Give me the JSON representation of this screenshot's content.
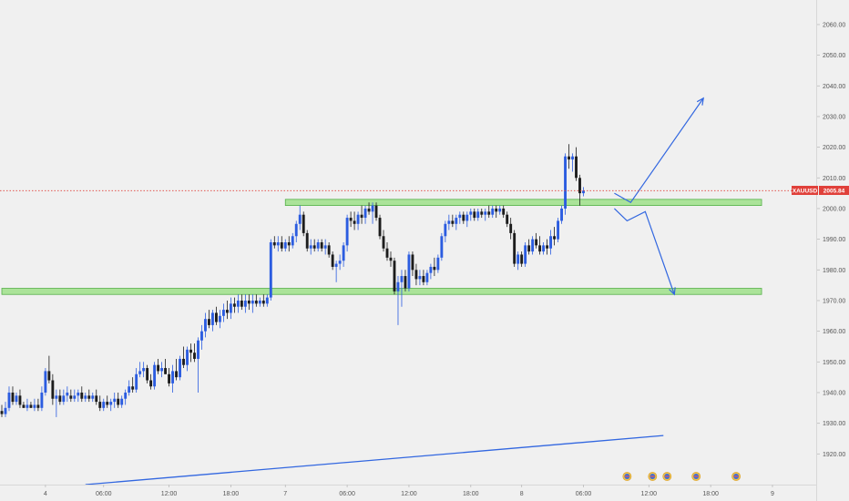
{
  "chart_data": {
    "type": "candlestick",
    "symbol": "XAUUSD",
    "last_price": "2005.84",
    "colors": {
      "background": "#f0f0f0",
      "bull": "#2b5ce0",
      "bear": "#1c1c1c",
      "zone_fill": "#9fe08a",
      "zone_stroke": "#56b04a",
      "drawing": "#3267e0",
      "price_line": "#e0403a",
      "price_tag": "#e0403a"
    },
    "y_axis": {
      "range": [
        1910,
        2068
      ],
      "ticks": [
        "2060.00",
        "2050.00",
        "2040.00",
        "2030.00",
        "2020.00",
        "2010.00",
        "2000.00",
        "1990.00",
        "1980.00",
        "1970.00",
        "1960.00",
        "1950.00",
        "1940.00",
        "1930.00",
        "1920.00"
      ]
    },
    "x_axis": {
      "bar_range": [
        0,
        212
      ],
      "ticks": [
        {
          "label": "4",
          "bar": 12
        },
        {
          "label": "06:00",
          "bar": 28
        },
        {
          "label": "12:00",
          "bar": 46
        },
        {
          "label": "18:00",
          "bar": 63
        },
        {
          "label": "7",
          "bar": 78
        },
        {
          "label": "06:00",
          "bar": 95
        },
        {
          "label": "12:00",
          "bar": 112
        },
        {
          "label": "18:00",
          "bar": 129
        },
        {
          "label": "8",
          "bar": 143
        },
        {
          "label": "06:00",
          "bar": 160
        },
        {
          "label": "12:00",
          "bar": 178
        },
        {
          "label": "18:00",
          "bar": 195
        },
        {
          "label": "9",
          "bar": 212
        }
      ]
    },
    "ohlc": [
      [
        1934,
        1936,
        1932,
        1933
      ],
      [
        1933,
        1937,
        1932,
        1935
      ],
      [
        1935,
        1942,
        1934,
        1940
      ],
      [
        1940,
        1942,
        1936,
        1937
      ],
      [
        1937,
        1940,
        1936,
        1939
      ],
      [
        1939,
        1941,
        1935,
        1936
      ],
      [
        1936,
        1937,
        1935,
        1935
      ],
      [
        1935,
        1938,
        1934,
        1936
      ],
      [
        1936,
        1937,
        1935,
        1935
      ],
      [
        1935,
        1938,
        1934,
        1936
      ],
      [
        1936,
        1938,
        1934,
        1935
      ],
      [
        1935,
        1942,
        1934,
        1940
      ],
      [
        1940,
        1948,
        1939,
        1947
      ],
      [
        1947,
        1952,
        1943,
        1944
      ],
      [
        1944,
        1946,
        1936,
        1938
      ],
      [
        1938,
        1941,
        1932,
        1939
      ],
      [
        1939,
        1941,
        1936,
        1937
      ],
      [
        1937,
        1941,
        1936,
        1939
      ],
      [
        1939,
        1942,
        1937,
        1940
      ],
      [
        1939,
        1941,
        1937,
        1938
      ],
      [
        1938,
        1941,
        1937,
        1939
      ],
      [
        1939,
        1941,
        1937,
        1940
      ],
      [
        1940,
        1942,
        1937,
        1938
      ],
      [
        1938,
        1940,
        1937,
        1939
      ],
      [
        1939,
        1941,
        1937,
        1938
      ],
      [
        1938,
        1940,
        1937,
        1939
      ],
      [
        1939,
        1941,
        1936,
        1937
      ],
      [
        1937,
        1939,
        1934,
        1935
      ],
      [
        1935,
        1938,
        1934,
        1937
      ],
      [
        1937,
        1939,
        1935,
        1936
      ],
      [
        1936,
        1938,
        1934,
        1937
      ],
      [
        1937,
        1940,
        1935,
        1938
      ],
      [
        1938,
        1940,
        1935,
        1936
      ],
      [
        1936,
        1939,
        1935,
        1938
      ],
      [
        1938,
        1941,
        1936,
        1940
      ],
      [
        1940,
        1944,
        1939,
        1942
      ],
      [
        1942,
        1945,
        1940,
        1941
      ],
      [
        1941,
        1948,
        1940,
        1946
      ],
      [
        1946,
        1950,
        1945,
        1947
      ],
      [
        1947,
        1950,
        1945,
        1948
      ],
      [
        1948,
        1949,
        1943,
        1944
      ],
      [
        1944,
        1946,
        1941,
        1942
      ],
      [
        1942,
        1950,
        1941,
        1949
      ],
      [
        1949,
        1951,
        1946,
        1947
      ],
      [
        1947,
        1950,
        1945,
        1948
      ],
      [
        1948,
        1951,
        1946,
        1946
      ],
      [
        1946,
        1948,
        1942,
        1943
      ],
      [
        1943,
        1949,
        1940,
        1947
      ],
      [
        1947,
        1951,
        1944,
        1945
      ],
      [
        1945,
        1952,
        1944,
        1951
      ],
      [
        1951,
        1955,
        1948,
        1949
      ],
      [
        1949,
        1955,
        1947,
        1954
      ],
      [
        1954,
        1956,
        1950,
        1953
      ],
      [
        1953,
        1956,
        1950,
        1951
      ],
      [
        1951,
        1958,
        1940,
        1957
      ],
      [
        1957,
        1962,
        1954,
        1960
      ],
      [
        1960,
        1966,
        1958,
        1964
      ],
      [
        1964,
        1967,
        1961,
        1962
      ],
      [
        1962,
        1967,
        1960,
        1966
      ],
      [
        1966,
        1968,
        1962,
        1963
      ],
      [
        1963,
        1967,
        1961,
        1965
      ],
      [
        1965,
        1969,
        1963,
        1967
      ],
      [
        1967,
        1970,
        1964,
        1966
      ],
      [
        1966,
        1971,
        1964,
        1969
      ],
      [
        1969,
        1971,
        1966,
        1968
      ],
      [
        1968,
        1972,
        1966,
        1970
      ],
      [
        1970,
        1972,
        1967,
        1968
      ],
      [
        1968,
        1972,
        1966,
        1970
      ],
      [
        1970,
        1972,
        1967,
        1969
      ],
      [
        1969,
        1972,
        1966,
        1970
      ],
      [
        1970,
        1972,
        1968,
        1969
      ],
      [
        1969,
        1971,
        1968,
        1970
      ],
      [
        1970,
        1972,
        1968,
        1969
      ],
      [
        1969,
        1972,
        1968,
        1971
      ],
      [
        1971,
        1990,
        1970,
        1989
      ],
      [
        1989,
        1991,
        1987,
        1988
      ],
      [
        1988,
        1991,
        1986,
        1989
      ],
      [
        1989,
        1991,
        1986,
        1987
      ],
      [
        1987,
        1990,
        1986,
        1989
      ],
      [
        1989,
        1991,
        1986,
        1988
      ],
      [
        1988,
        1992,
        1987,
        1991
      ],
      [
        1991,
        1996,
        1989,
        1995
      ],
      [
        1995,
        2001,
        1993,
        1998
      ],
      [
        1998,
        1999,
        1991,
        1992
      ],
      [
        1992,
        1993,
        1986,
        1987
      ],
      [
        1987,
        1990,
        1985,
        1988
      ],
      [
        1988,
        1990,
        1986,
        1987
      ],
      [
        1987,
        1990,
        1986,
        1989
      ],
      [
        1989,
        1990,
        1986,
        1987
      ],
      [
        1987,
        1990,
        1985,
        1988
      ],
      [
        1988,
        1989,
        1984,
        1985
      ],
      [
        1985,
        1986,
        1980,
        1981
      ],
      [
        1981,
        1983,
        1976,
        1982
      ],
      [
        1982,
        1985,
        1980,
        1983
      ],
      [
        1983,
        1989,
        1981,
        1988
      ],
      [
        1988,
        1998,
        1986,
        1997
      ],
      [
        1997,
        1999,
        1994,
        1996
      ],
      [
        1996,
        1999,
        1993,
        1995
      ],
      [
        1995,
        1999,
        1993,
        1998
      ],
      [
        1998,
        2001,
        1995,
        1997
      ],
      [
        1997,
        2001,
        1995,
        2000
      ],
      [
        2000,
        2002,
        1998,
        1999
      ],
      [
        1999,
        2002,
        1995,
        2001
      ],
      [
        2001,
        2002,
        1996,
        1997
      ],
      [
        1997,
        1998,
        1990,
        1991
      ],
      [
        1991,
        1993,
        1986,
        1987
      ],
      [
        1987,
        1989,
        1983,
        1984
      ],
      [
        1984,
        1986,
        1981,
        1983
      ],
      [
        1983,
        1984,
        1972,
        1973
      ],
      [
        1973,
        1978,
        1962,
        1976
      ],
      [
        1976,
        1980,
        1968,
        1978
      ],
      [
        1978,
        1980,
        1973,
        1974
      ],
      [
        1974,
        1986,
        1973,
        1985
      ],
      [
        1985,
        1986,
        1978,
        1980
      ],
      [
        1980,
        1982,
        1975,
        1977
      ],
      [
        1977,
        1980,
        1975,
        1978
      ],
      [
        1978,
        1980,
        1975,
        1976
      ],
      [
        1976,
        1980,
        1975,
        1979
      ],
      [
        1979,
        1982,
        1977,
        1981
      ],
      [
        1981,
        1984,
        1978,
        1980
      ],
      [
        1980,
        1985,
        1979,
        1984
      ],
      [
        1984,
        1992,
        1983,
        1991
      ],
      [
        1991,
        1996,
        1989,
        1995
      ],
      [
        1995,
        1998,
        1993,
        1996
      ],
      [
        1996,
        1998,
        1994,
        1995
      ],
      [
        1995,
        1998,
        1993,
        1997
      ],
      [
        1997,
        1999,
        1995,
        1998
      ],
      [
        1998,
        1999,
        1995,
        1996
      ],
      [
        1996,
        1999,
        1994,
        1998
      ],
      [
        1998,
        2000,
        1996,
        1999
      ],
      [
        1999,
        2000,
        1996,
        1997
      ],
      [
        1997,
        2000,
        1996,
        1999
      ],
      [
        1999,
        2000,
        1997,
        1998
      ],
      [
        1998,
        2000,
        1996,
        1999
      ],
      [
        1999,
        2001,
        1997,
        1998
      ],
      [
        1998,
        2001,
        1997,
        2000
      ],
      [
        2000,
        2001,
        1997,
        1999
      ],
      [
        1999,
        2001,
        1998,
        2000
      ],
      [
        2000,
        2001,
        1997,
        1998
      ],
      [
        1998,
        1999,
        1994,
        1995
      ],
      [
        1995,
        1997,
        1990,
        1992
      ],
      [
        1992,
        1993,
        1981,
        1982
      ],
      [
        1982,
        1986,
        1980,
        1985
      ],
      [
        1985,
        1986,
        1981,
        1982
      ],
      [
        1982,
        1989,
        1981,
        1988
      ],
      [
        1988,
        1990,
        1985,
        1986
      ],
      [
        1986,
        1991,
        1985,
        1990
      ],
      [
        1990,
        1992,
        1987,
        1988
      ],
      [
        1988,
        1991,
        1985,
        1986
      ],
      [
        1986,
        1989,
        1985,
        1988
      ],
      [
        1988,
        1990,
        1985,
        1987
      ],
      [
        1987,
        1993,
        1985,
        1991
      ],
      [
        1991,
        1994,
        1988,
        1990
      ],
      [
        1990,
        1997,
        1989,
        1996
      ],
      [
        1996,
        2001,
        1995,
        2000
      ],
      [
        2000,
        2018,
        1998,
        2017
      ],
      [
        2017,
        2021,
        2013,
        2016
      ],
      [
        2016,
        2018,
        2012,
        2017
      ],
      [
        2017,
        2020,
        2009,
        2010
      ],
      [
        2010,
        2011,
        2001,
        2005
      ],
      [
        2005,
        2007,
        2004,
        2005.84
      ]
    ],
    "zones": [
      {
        "top": 2003,
        "bottom": 2001,
        "from_bar": 78,
        "to_bar": 209
      },
      {
        "top": 1974,
        "bottom": 1972,
        "from_bar": 0,
        "to_bar": 209
      }
    ],
    "arrows": [
      {
        "points": [
          [
            168.5,
            2005
          ],
          [
            173,
            2002
          ],
          [
            193,
            2036
          ]
        ]
      },
      {
        "points": [
          [
            168.5,
            2000
          ],
          [
            172,
            1996
          ],
          [
            177,
            1999
          ],
          [
            185,
            1972
          ]
        ]
      }
    ],
    "trendline": {
      "points": [
        [
          23,
          1910
        ],
        [
          182,
          1926
        ]
      ]
    },
    "events": [
      {
        "bar": 172
      },
      {
        "bar": 179
      },
      {
        "bar": 183
      },
      {
        "bar": 191
      },
      {
        "bar": 202
      }
    ]
  }
}
